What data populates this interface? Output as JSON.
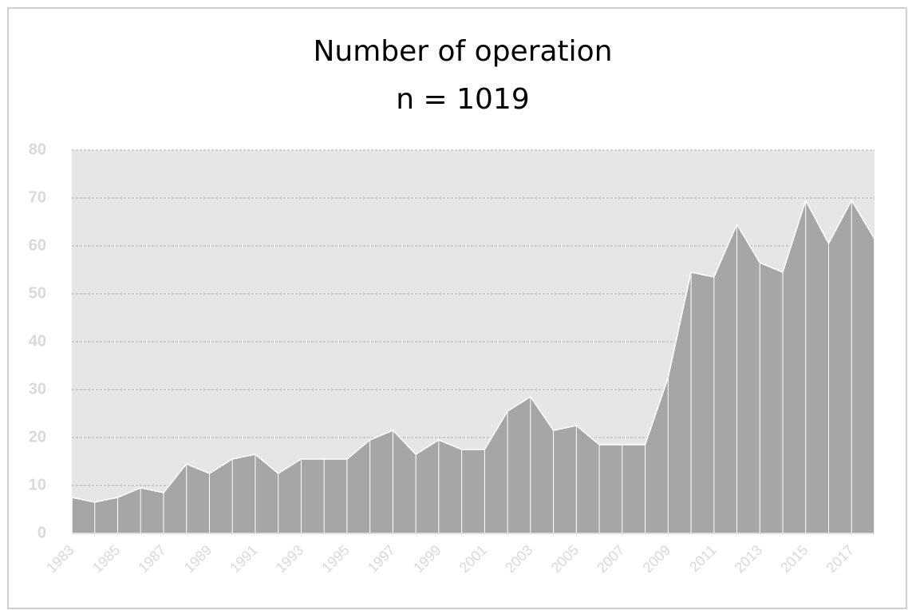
{
  "chart_data": {
    "type": "area",
    "title": "Number of operation",
    "subtitle": "n = 1019",
    "categories": [
      "1983",
      null,
      "1985",
      null,
      "1987",
      null,
      "1989",
      null,
      "1991",
      null,
      "1993",
      null,
      "1995",
      null,
      "1997",
      null,
      "1999",
      null,
      "2001",
      null,
      "2003",
      null,
      "2005",
      null,
      "2007",
      null,
      "2009",
      null,
      "2011",
      null,
      "2013",
      null,
      "2015",
      null,
      "2017",
      null
    ],
    "values": [
      7.5,
      6.5,
      7.5,
      9.5,
      8.5,
      14.5,
      12.5,
      15.5,
      16.5,
      12.5,
      15.5,
      15.5,
      15.5,
      19.5,
      21.5,
      16.5,
      19.5,
      17.5,
      17.5,
      25.5,
      28.5,
      21.5,
      22.5,
      18.5,
      18.5,
      18.5,
      32.5,
      54.5,
      53.5,
      64.5,
      56.5,
      54.5,
      69.5,
      60.5,
      69.5,
      61.5
    ],
    "color": "#a6a6a6",
    "ylim": [
      0,
      80
    ],
    "yticks": [
      0,
      10,
      20,
      30,
      40,
      50,
      60,
      70,
      80
    ],
    "grid": true
  }
}
